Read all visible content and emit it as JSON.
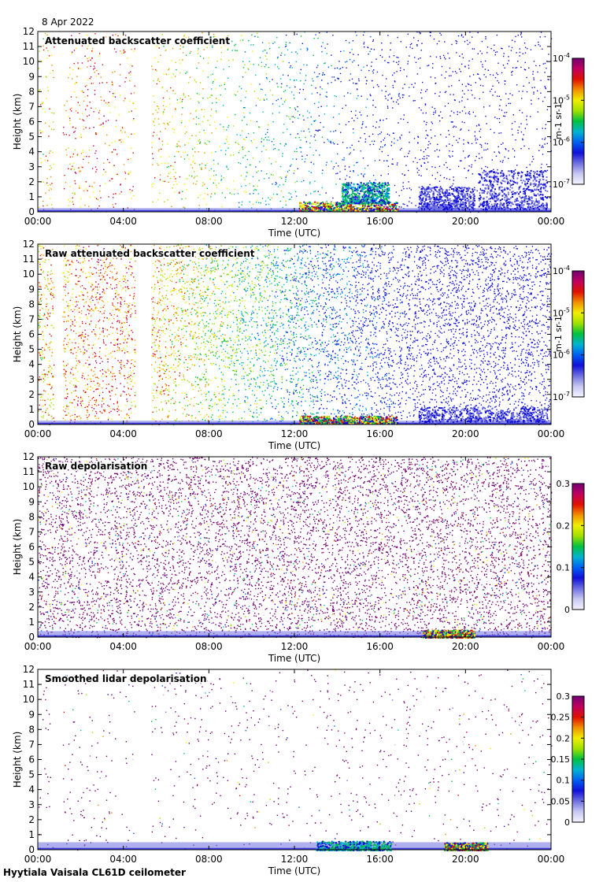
{
  "header": {
    "date": "8 Apr 2022"
  },
  "footer": {
    "caption": "Hyytiala Vaisala CL61D ceilometer"
  },
  "chart_data": [
    {
      "type": "heatmap",
      "title": "Attenuated backscatter coefficient",
      "xlabel": "Time (UTC)",
      "ylabel": "Height (km)",
      "xticks": [
        "00:00",
        "04:00",
        "08:00",
        "12:00",
        "16:00",
        "20:00",
        "00:00"
      ],
      "xlim_hours": [
        0,
        24
      ],
      "ylim": [
        0,
        12
      ],
      "yticks": [
        0,
        1,
        2,
        3,
        4,
        5,
        6,
        7,
        8,
        9,
        10,
        11,
        12
      ],
      "colorbar": {
        "scale": "log",
        "unit": "m-1 sr-1",
        "ticks": [
          {
            "base": "10",
            "exp": "-7"
          },
          {
            "base": "10",
            "exp": "-6"
          },
          {
            "base": "10",
            "exp": "-5"
          },
          {
            "base": "10",
            "exp": "-4"
          }
        ]
      },
      "noise_density": 0.28,
      "gaps_hours": [
        [
          0.75,
          1.15
        ],
        [
          4.55,
          5.3
        ]
      ],
      "surface_layer_km": 0.25,
      "features": [
        {
          "t": [
            12.2,
            16.8
          ],
          "h": [
            0.1,
            0.7
          ],
          "level": "high"
        },
        {
          "t": [
            14.2,
            16.4
          ],
          "h": [
            0.6,
            2.0
          ],
          "level": "mid"
        },
        {
          "t": [
            17.8,
            20.4
          ],
          "h": [
            0.2,
            1.7
          ],
          "level": "low"
        },
        {
          "t": [
            20.6,
            23.8
          ],
          "h": [
            0.2,
            2.8
          ],
          "level": "low"
        }
      ]
    },
    {
      "type": "heatmap",
      "title": "Raw attenuated backscatter coefficient",
      "xlabel": "Time (UTC)",
      "ylabel": "Height (km)",
      "xticks": [
        "00:00",
        "04:00",
        "08:00",
        "12:00",
        "16:00",
        "20:00",
        "00:00"
      ],
      "xlim_hours": [
        0,
        24
      ],
      "ylim": [
        0,
        12
      ],
      "yticks": [
        0,
        1,
        2,
        3,
        4,
        5,
        6,
        7,
        8,
        9,
        10,
        11,
        12
      ],
      "colorbar": {
        "scale": "log",
        "unit": "m-1 sr-1",
        "ticks": [
          {
            "base": "10",
            "exp": "-7"
          },
          {
            "base": "10",
            "exp": "-6"
          },
          {
            "base": "10",
            "exp": "-5"
          },
          {
            "base": "10",
            "exp": "-4"
          }
        ]
      },
      "noise_density": 0.85,
      "gaps_hours": [
        [
          0.75,
          1.15
        ],
        [
          4.55,
          5.3
        ]
      ],
      "surface_layer_km": 0.25,
      "features": [
        {
          "t": [
            12.2,
            16.8
          ],
          "h": [
            0.1,
            0.6
          ],
          "level": "high"
        },
        {
          "t": [
            17.8,
            23.8
          ],
          "h": [
            0.2,
            1.2
          ],
          "level": "low"
        }
      ]
    },
    {
      "type": "heatmap",
      "title": "Raw depolarisation",
      "xlabel": "Time (UTC)",
      "ylabel": "Height (km)",
      "xticks": [
        "00:00",
        "04:00",
        "08:00",
        "12:00",
        "16:00",
        "20:00",
        "00:00"
      ],
      "xlim_hours": [
        0,
        24
      ],
      "ylim": [
        0,
        12
      ],
      "yticks": [
        0,
        1,
        2,
        3,
        4,
        5,
        6,
        7,
        8,
        9,
        10,
        11,
        12
      ],
      "colorbar": {
        "scale": "linear",
        "unit": "",
        "ticks": [
          "0",
          "0.1",
          "0.2",
          "0.3"
        ]
      },
      "noise_density": 0.9,
      "gaps_hours": [],
      "surface_layer_km": 0.4,
      "features": [
        {
          "t": [
            18.0,
            20.4
          ],
          "h": [
            0.0,
            0.5
          ],
          "level": "high"
        }
      ]
    },
    {
      "type": "heatmap",
      "title": "Smoothed lidar depolarisation",
      "xlabel": "Time (UTC)",
      "ylabel": "Height (km)",
      "xticks": [
        "00:00",
        "04:00",
        "08:00",
        "12:00",
        "16:00",
        "20:00",
        "00:00"
      ],
      "xlim_hours": [
        0,
        24
      ],
      "ylim": [
        0,
        12
      ],
      "yticks": [
        0,
        1,
        2,
        3,
        4,
        5,
        6,
        7,
        8,
        9,
        10,
        11,
        12
      ],
      "colorbar": {
        "scale": "linear",
        "unit": "",
        "ticks": [
          "0",
          "0.05",
          "0.1",
          "0.15",
          "0.2",
          "0.25",
          "0.3"
        ]
      },
      "noise_density": 0.1,
      "gaps_hours": [
        [
          0.75,
          1.15
        ],
        [
          4.55,
          5.3
        ]
      ],
      "surface_layer_km": 0.5,
      "features": [
        {
          "t": [
            13.0,
            16.5
          ],
          "h": [
            0.0,
            0.6
          ],
          "level": "mid"
        },
        {
          "t": [
            19.0,
            21.0
          ],
          "h": [
            0.0,
            0.5
          ],
          "level": "high"
        }
      ]
    }
  ],
  "colors": {
    "colormap": [
      "#f4f4ff",
      "#c8c8f0",
      "#7070e0",
      "#1010d8",
      "#0060f0",
      "#00b4d0",
      "#00c040",
      "#a0e000",
      "#f0f000",
      "#f09000",
      "#e01000",
      "#c00060",
      "#700070"
    ],
    "gap_gray": "#d8d8d8"
  }
}
